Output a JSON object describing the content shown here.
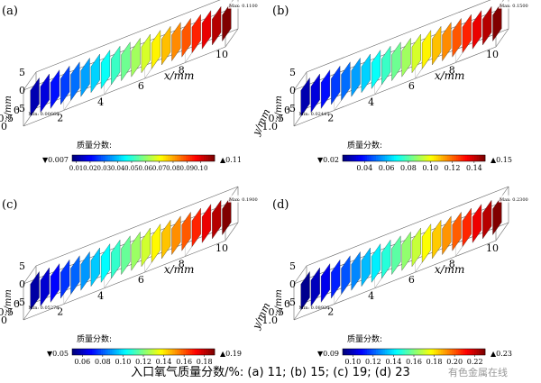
{
  "figure": {
    "caption": "入口氧气质量分数/%: (a) 11; (b) 15; (c) 19; (d) 23",
    "watermark": "有色金属在线"
  },
  "chart_data": [
    {
      "type": "heatmap",
      "panel_label": "(a)",
      "xlabel": "x/mm",
      "ylabel": "y/mm",
      "zlabel": "z/mm",
      "x_ticks": [
        "2",
        "4",
        "6",
        "8",
        "10"
      ],
      "y_ticks": [
        "1.0",
        "0.5",
        "0"
      ],
      "z_ticks": [
        "5",
        "0",
        "-5"
      ],
      "colorbar_title": "质量分数:",
      "colorbar_ticks": [
        "0.01",
        "0.02",
        "0.03",
        "0.04",
        "0.05",
        "0.06",
        "0.07",
        "0.08",
        "0.09",
        "0.10"
      ],
      "colorbar_min": "▼0.007",
      "colorbar_max": "▲0.11",
      "max_marker": "Max: 0.1100",
      "min_marker": "Min: 0.00669",
      "vmin": 0.007,
      "vmax": 0.11,
      "n_slices": 20,
      "slice_start": 0.012,
      "slice_end": 0.11
    },
    {
      "type": "heatmap",
      "panel_label": "(b)",
      "xlabel": "x/mm",
      "ylabel": "y/mm",
      "zlabel": "z/mm",
      "x_ticks": [
        "2",
        "4",
        "6",
        "8",
        "10"
      ],
      "y_ticks": [
        "1.0",
        "0.5",
        "0"
      ],
      "z_ticks": [
        "5",
        "0",
        "-5"
      ],
      "colorbar_title": "质量分数:",
      "colorbar_ticks": [
        "0.04",
        "0.06",
        "0.08",
        "0.10",
        "0.12",
        "0.14"
      ],
      "colorbar_min": "▼0.02",
      "colorbar_max": "▲0.15",
      "max_marker": "Max: 0.1500",
      "min_marker": "Min: 0.02447",
      "vmin": 0.02,
      "vmax": 0.15,
      "n_slices": 20,
      "slice_start": 0.026,
      "slice_end": 0.15
    },
    {
      "type": "heatmap",
      "panel_label": "(c)",
      "xlabel": "x/mm",
      "ylabel": "y/mm",
      "zlabel": "z/mm",
      "x_ticks": [
        "2",
        "4",
        "6",
        "8",
        "10"
      ],
      "y_ticks": [
        "1.0",
        "0.5",
        "0"
      ],
      "z_ticks": [
        "5",
        "0",
        "-5"
      ],
      "colorbar_title": "质量分数:",
      "colorbar_ticks": [
        "0.06",
        "0.08",
        "0.10",
        "0.12",
        "0.14",
        "0.16",
        "0.18"
      ],
      "colorbar_min": "▼0.05",
      "colorbar_max": "▲0.19",
      "max_marker": "Max: 0.1900",
      "min_marker": "Min: 0.05278",
      "vmin": 0.05,
      "vmax": 0.19,
      "n_slices": 20,
      "slice_start": 0.055,
      "slice_end": 0.19
    },
    {
      "type": "heatmap",
      "panel_label": "(d)",
      "xlabel": "x/mm",
      "ylabel": "y/mm",
      "zlabel": "z/mm",
      "x_ticks": [
        "2",
        "4",
        "6",
        "8",
        "10"
      ],
      "y_ticks": [
        "1.0",
        "0.5",
        "0"
      ],
      "z_ticks": [
        "5",
        "0",
        "-5"
      ],
      "colorbar_title": "质量分数:",
      "colorbar_ticks": [
        "0.10",
        "0.12",
        "0.14",
        "0.16",
        "0.18",
        "0.20",
        "0.22"
      ],
      "colorbar_min": "▼0.09",
      "colorbar_max": "▲0.23",
      "max_marker": "Max: 0.2300",
      "min_marker": "Min: 0.08920",
      "vmin": 0.09,
      "vmax": 0.23,
      "n_slices": 20,
      "slice_start": 0.092,
      "slice_end": 0.23
    }
  ]
}
